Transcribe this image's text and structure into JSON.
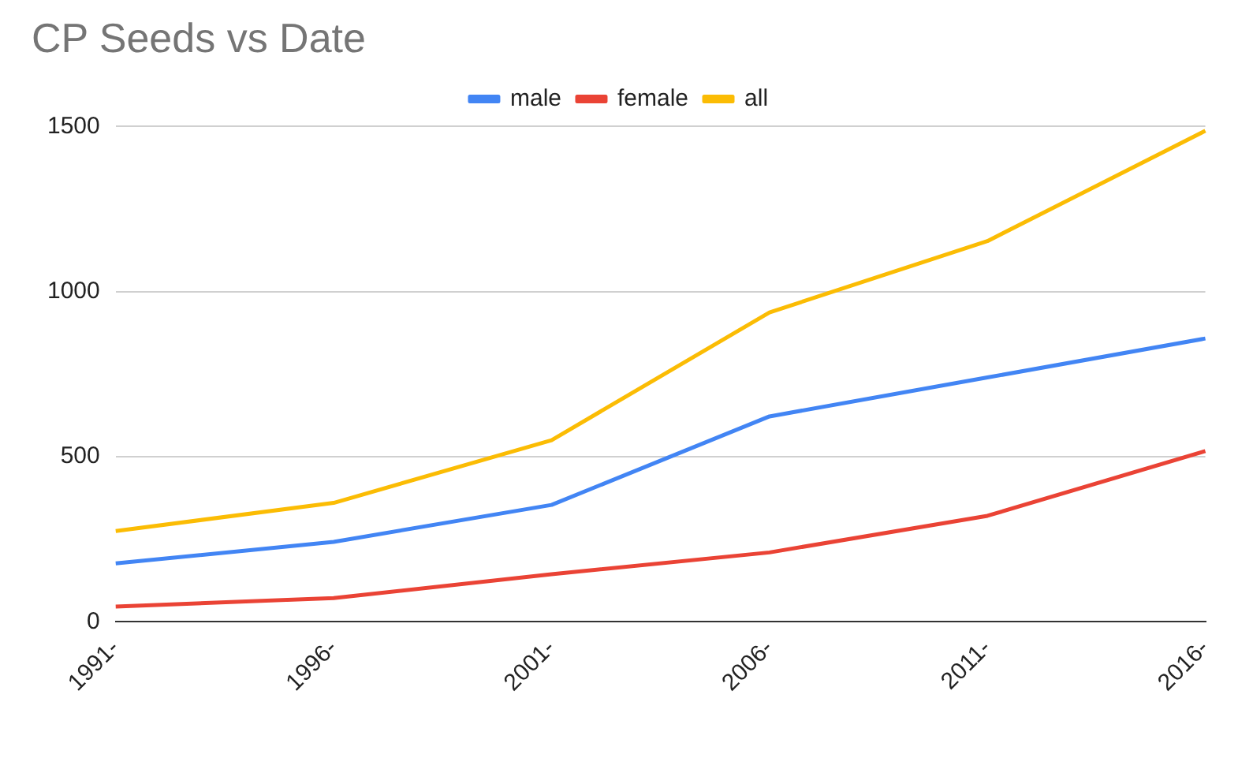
{
  "chart_data": {
    "type": "line",
    "title": "CP Seeds vs Date",
    "categories": [
      "1991-",
      "1996-",
      "2001-",
      "2006-",
      "2011-",
      "2016-"
    ],
    "series": [
      {
        "name": "male",
        "color": "#4285f4",
        "values": [
          177,
          242,
          354,
          622,
          740,
          858
        ]
      },
      {
        "name": "female",
        "color": "#ea4335",
        "values": [
          46,
          72,
          144,
          210,
          321,
          517
        ]
      },
      {
        "name": "all",
        "color": "#fbbc04",
        "values": [
          275,
          360,
          550,
          937,
          1153,
          1487
        ]
      }
    ],
    "ylim": [
      0,
      1500
    ],
    "yticks": [
      0,
      500,
      1000,
      1500
    ],
    "grid": "y",
    "legend": "top",
    "marker": "none",
    "line_style": "solid"
  }
}
